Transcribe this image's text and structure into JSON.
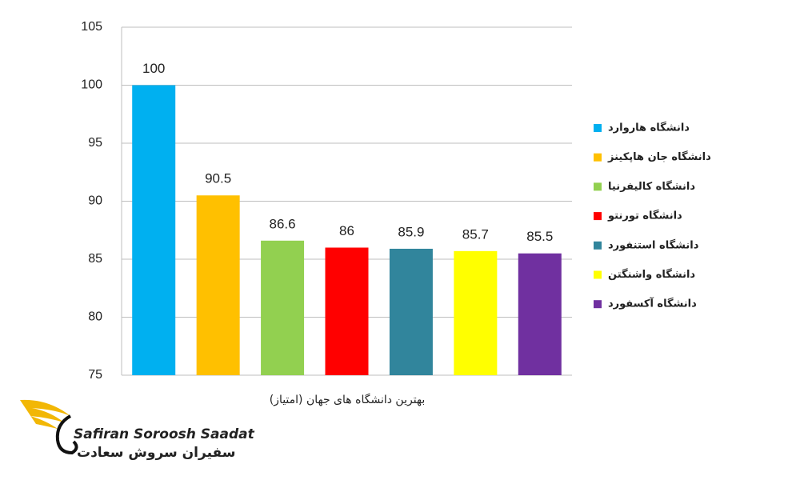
{
  "chart_data": {
    "type": "bar",
    "x_label": "بهترین دانشگاه های جهان (امتیاز)",
    "series": [
      {
        "name": "دانشگاه هاروارد",
        "color": "#00b0f0",
        "values": [
          100
        ]
      },
      {
        "name": "دانشگاه جان هاپکینز",
        "color": "#ffc000",
        "values": [
          90.5
        ]
      },
      {
        "name": "دانشگاه کالیفرنیا",
        "color": "#92d050",
        "values": [
          86.6
        ]
      },
      {
        "name": "دانشگاه تورنتو",
        "color": "#ff0000",
        "values": [
          86
        ]
      },
      {
        "name": "دانشگاه استنفورد",
        "color": "#31859c",
        "values": [
          85.9
        ]
      },
      {
        "name": "دانشگاه واشنگتن",
        "color": "#ffff00",
        "values": [
          85.7
        ]
      },
      {
        "name": "دانشگاه آکسفورد",
        "color": "#7030a0",
        "values": [
          85.5
        ]
      }
    ],
    "ylim": [
      75,
      105
    ],
    "yticks": [
      75,
      80,
      85,
      90,
      95,
      100,
      105
    ],
    "grid": true,
    "legend": "right"
  },
  "logo": {
    "name": "Safiran Soroosh Saadat",
    "name_fa": "سفیران سروش سعادت"
  }
}
